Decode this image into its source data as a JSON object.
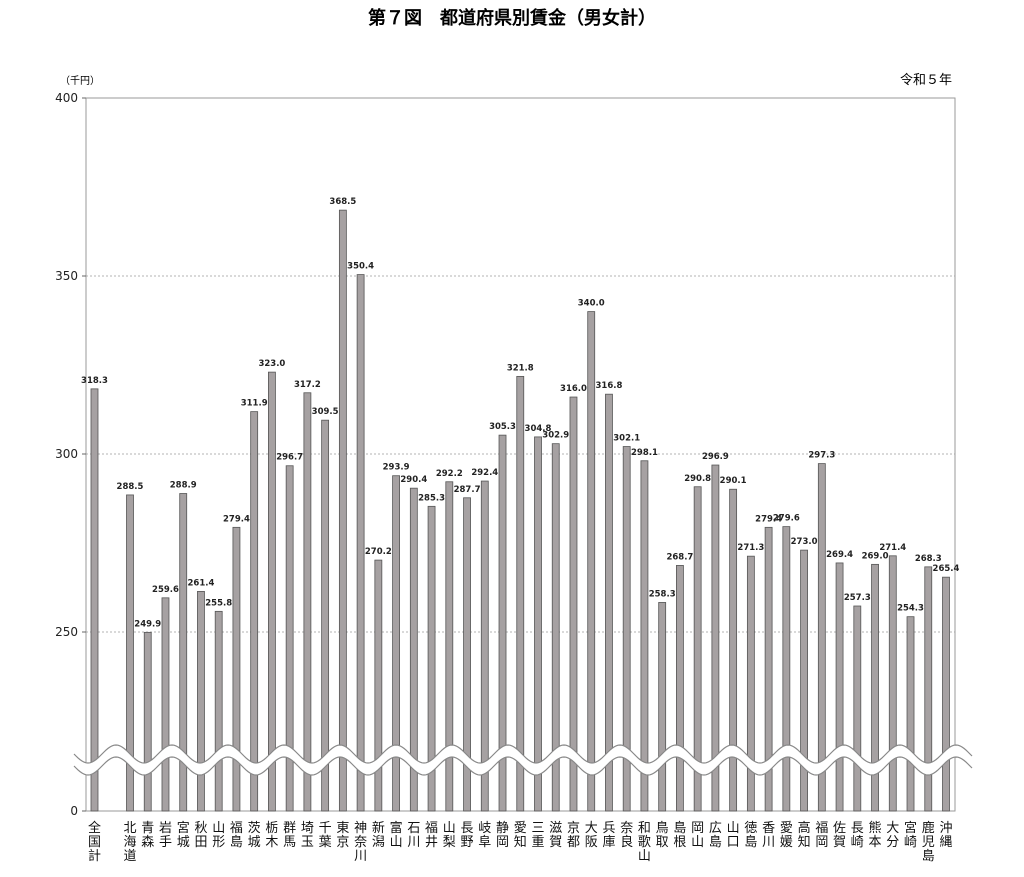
{
  "chart_data": {
    "type": "bar",
    "title": "第７図　都道府県別賃金（男女計）",
    "unit_label": "（千円）",
    "year_note": "令和５年",
    "ylim": [
      0,
      400
    ],
    "y_break": [
      0,
      200
    ],
    "yticks": [
      "0",
      "250",
      "300",
      "350",
      "400"
    ],
    "grid": true,
    "bar_color": "#a6a1a2",
    "categories": [
      "全国計",
      "北海道",
      "青森",
      "岩手",
      "宮城",
      "秋田",
      "山形",
      "福島",
      "茨城",
      "栃木",
      "群馬",
      "埼玉",
      "千葉",
      "東京",
      "神奈川",
      "新潟",
      "富山",
      "石川",
      "福井",
      "山梨",
      "長野",
      "岐阜",
      "静岡",
      "愛知",
      "三重",
      "滋賀",
      "京都",
      "大阪",
      "兵庫",
      "奈良",
      "和歌山",
      "鳥取",
      "島根",
      "岡山",
      "広島",
      "山口",
      "徳島",
      "香川",
      "愛媛",
      "高知",
      "福岡",
      "佐賀",
      "長崎",
      "熊本",
      "大分",
      "宮崎",
      "鹿児島",
      "沖縄"
    ],
    "values": [
      318.3,
      288.5,
      249.9,
      259.6,
      288.9,
      261.4,
      255.8,
      279.4,
      311.9,
      323.0,
      296.7,
      317.2,
      309.5,
      368.5,
      350.4,
      270.2,
      293.9,
      290.4,
      285.3,
      292.2,
      287.7,
      292.4,
      305.3,
      321.8,
      304.8,
      302.9,
      316.0,
      340.0,
      316.8,
      302.1,
      298.1,
      258.3,
      268.7,
      290.8,
      296.9,
      290.1,
      271.3,
      279.4,
      279.6,
      273.0,
      297.3,
      269.4,
      257.3,
      269.0,
      271.4,
      254.3,
      268.3,
      265.4
    ],
    "value_labels": [
      "318.3",
      "288.5",
      "249.9",
      "259.6",
      "288.9",
      "261.4",
      "255.8",
      "279.4",
      "311.9",
      "323.0",
      "296.7",
      "317.2",
      "309.5",
      "368.5",
      "350.4",
      "270.2",
      "293.9",
      "290.4",
      "285.3",
      "292.2",
      "287.7",
      "292.4",
      "305.3",
      "321.8",
      "304.8",
      "302.9",
      "316.0",
      "340.0",
      "316.8",
      "302.1",
      "298.1",
      "258.3",
      "268.7",
      "290.8",
      "296.9",
      "290.1",
      "271.3",
      "279.4",
      "279.6",
      "273.0",
      "297.3",
      "269.4",
      "257.3",
      "269.0",
      "271.4",
      "254.3",
      "268.3",
      "265.4"
    ]
  }
}
